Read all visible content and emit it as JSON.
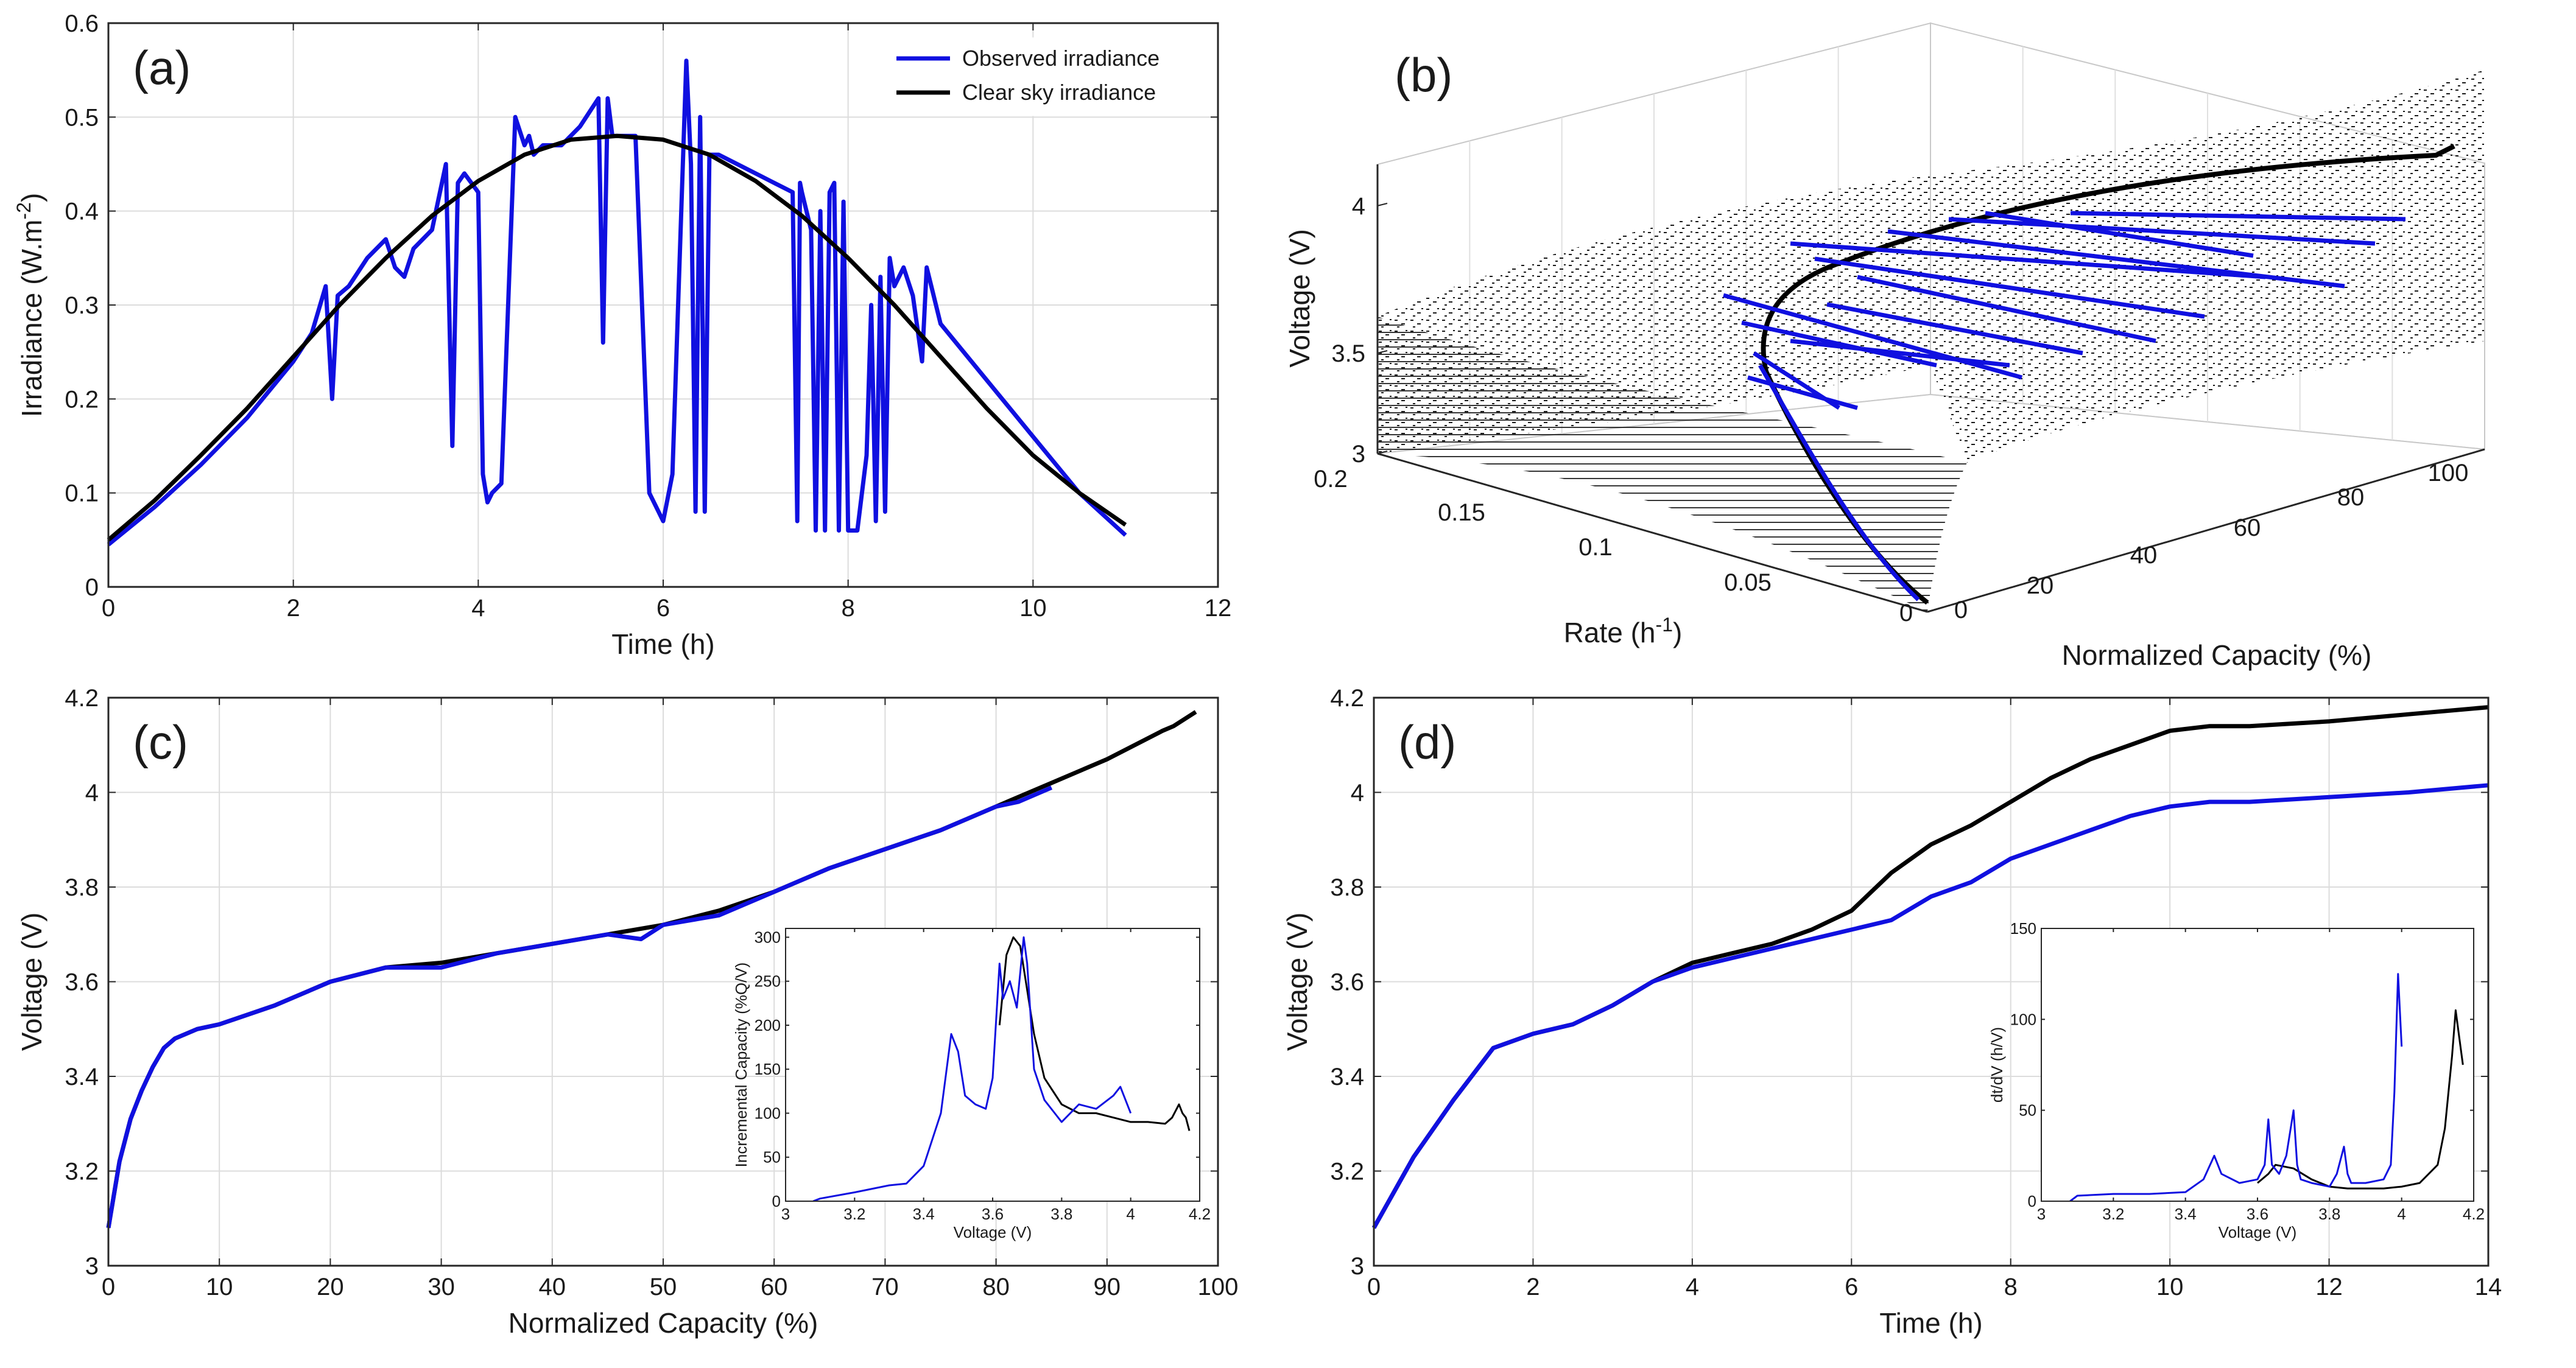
{
  "colors": {
    "observed": "#1010e0",
    "clear_sky": "#000000",
    "grid": "#dcdcdc",
    "axis": "#262626"
  },
  "chart_data": [
    {
      "id": "a",
      "type": "line",
      "panel_label": "(a)",
      "xlabel": "Time (h)",
      "ylabel_main": "Irradiance (W.m",
      "ylabel_sup": "-2",
      "ylabel_end": ")",
      "xlim": [
        0,
        12
      ],
      "ylim": [
        0,
        0.6
      ],
      "xticks": [
        0,
        2,
        4,
        6,
        8,
        10,
        12
      ],
      "yticks": [
        0,
        0.1,
        0.2,
        0.3,
        0.4,
        0.5,
        0.6
      ],
      "grid": true,
      "legend": "top-right",
      "series": [
        {
          "name": "Observed irradiance",
          "color": "#1010e0",
          "x": [
            0,
            0.5,
            1,
            1.5,
            2,
            2.2,
            2.35,
            2.42,
            2.48,
            2.6,
            2.8,
            3,
            3.1,
            3.2,
            3.3,
            3.5,
            3.65,
            3.72,
            3.78,
            3.85,
            4,
            4.05,
            4.1,
            4.15,
            4.25,
            4.4,
            4.5,
            4.55,
            4.6,
            4.7,
            4.9,
            5.1,
            5.3,
            5.35,
            5.4,
            5.45,
            5.55,
            5.7,
            5.85,
            5.95,
            6,
            6.1,
            6.25,
            6.3,
            6.35,
            6.4,
            6.45,
            6.5,
            6.6,
            6.8,
            7,
            7.2,
            7.4,
            7.45,
            7.48,
            7.5,
            7.55,
            7.6,
            7.65,
            7.7,
            7.75,
            7.8,
            7.85,
            7.9,
            7.95,
            8,
            8.1,
            8.2,
            8.25,
            8.3,
            8.35,
            8.4,
            8.45,
            8.5,
            8.6,
            8.7,
            8.8,
            8.85,
            8.9,
            9,
            9.5,
            10,
            10.5,
            11
          ],
          "y": [
            0.045,
            0.085,
            0.13,
            0.18,
            0.24,
            0.27,
            0.32,
            0.2,
            0.31,
            0.32,
            0.35,
            0.37,
            0.34,
            0.33,
            0.36,
            0.38,
            0.45,
            0.15,
            0.43,
            0.44,
            0.42,
            0.12,
            0.09,
            0.1,
            0.11,
            0.5,
            0.47,
            0.48,
            0.46,
            0.47,
            0.47,
            0.49,
            0.52,
            0.26,
            0.52,
            0.48,
            0.48,
            0.48,
            0.1,
            0.08,
            0.07,
            0.12,
            0.56,
            0.45,
            0.08,
            0.5,
            0.08,
            0.46,
            0.46,
            0.45,
            0.44,
            0.43,
            0.42,
            0.07,
            0.43,
            0.42,
            0.4,
            0.38,
            0.06,
            0.4,
            0.06,
            0.42,
            0.43,
            0.06,
            0.41,
            0.06,
            0.06,
            0.14,
            0.3,
            0.07,
            0.33,
            0.08,
            0.35,
            0.32,
            0.34,
            0.31,
            0.24,
            0.34,
            0.32,
            0.28,
            0.22,
            0.16,
            0.1,
            0.055
          ]
        },
        {
          "name": "Clear sky irradiance",
          "color": "#000000",
          "x": [
            0,
            0.5,
            1,
            1.5,
            2,
            2.5,
            3,
            3.5,
            4,
            4.5,
            5,
            5.5,
            6,
            6.5,
            7,
            7.5,
            8,
            8.5,
            9,
            9.5,
            10,
            10.5,
            11
          ],
          "y": [
            0.05,
            0.092,
            0.14,
            0.19,
            0.245,
            0.3,
            0.35,
            0.395,
            0.432,
            0.46,
            0.476,
            0.48,
            0.476,
            0.46,
            0.432,
            0.395,
            0.35,
            0.3,
            0.245,
            0.19,
            0.14,
            0.1,
            0.066
          ]
        }
      ]
    },
    {
      "id": "b",
      "type": "line",
      "panel_label": "(b)",
      "xlabel": "Normalized Capacity (%)",
      "rate_label_main": "Rate (h",
      "rate_label_sup": "-1",
      "rate_label_end": ")",
      "zlabel": "Voltage (V)",
      "capacity_ticks": [
        "0",
        "20",
        "40",
        "60",
        "80",
        "100"
      ],
      "rate_ticks": [
        "0.2",
        "0.15",
        "0.1",
        "0.05",
        "0"
      ],
      "voltage_ticks": [
        "3",
        "3.5",
        "4"
      ],
      "grid": true
    },
    {
      "id": "c",
      "type": "line",
      "panel_label": "(c)",
      "xlabel": "Normalized Capacity (%)",
      "ylabel": "Voltage (V)",
      "xlim": [
        0,
        100
      ],
      "ylim": [
        3,
        4.2
      ],
      "xticks": [
        0,
        10,
        20,
        30,
        40,
        50,
        60,
        70,
        80,
        90,
        100
      ],
      "yticks": [
        3,
        3.2,
        3.4,
        3.6,
        3.8,
        4,
        4.2
      ],
      "grid": true,
      "series": [
        {
          "color": "#000000",
          "x": [
            0,
            1,
            2,
            3,
            4,
            5,
            6,
            8,
            10,
            15,
            20,
            25,
            30,
            35,
            40,
            45,
            50,
            55,
            60,
            62,
            65,
            70,
            75,
            80,
            85,
            90,
            95,
            96,
            98
          ],
          "y": [
            3.08,
            3.22,
            3.31,
            3.37,
            3.42,
            3.46,
            3.48,
            3.5,
            3.51,
            3.55,
            3.6,
            3.63,
            3.64,
            3.66,
            3.68,
            3.7,
            3.72,
            3.75,
            3.79,
            3.81,
            3.84,
            3.88,
            3.92,
            3.97,
            4.02,
            4.07,
            4.13,
            4.14,
            4.17
          ]
        },
        {
          "color": "#1010e0",
          "x": [
            0,
            1,
            2,
            3,
            4,
            5,
            6,
            8,
            10,
            15,
            20,
            25,
            30,
            35,
            40,
            45,
            48,
            50,
            55,
            60,
            62,
            65,
            70,
            75,
            80,
            82,
            85
          ],
          "y": [
            3.08,
            3.22,
            3.31,
            3.37,
            3.42,
            3.46,
            3.48,
            3.5,
            3.51,
            3.55,
            3.6,
            3.63,
            3.63,
            3.66,
            3.68,
            3.7,
            3.69,
            3.72,
            3.74,
            3.79,
            3.81,
            3.84,
            3.88,
            3.92,
            3.97,
            3.98,
            4.01
          ]
        }
      ],
      "inset": {
        "xlabel": "Voltage (V)",
        "ylabel": "Incremental Capacity (%Q/V)",
        "xlim": [
          3,
          4.2
        ],
        "ylim": [
          0,
          310
        ],
        "xticks": [
          3,
          3.2,
          3.4,
          3.6,
          3.8,
          4,
          4.2
        ],
        "yticks": [
          0,
          50,
          100,
          150,
          200,
          250,
          300
        ],
        "series": [
          {
            "color": "#000000",
            "x": [
              3.62,
              3.64,
              3.66,
              3.68,
              3.7,
              3.72,
              3.75,
              3.8,
              3.85,
              3.9,
              3.95,
              4,
              4.05,
              4.1,
              4.12,
              4.14,
              4.15,
              4.16,
              4.17
            ],
            "y": [
              200,
              280,
              300,
              290,
              240,
              190,
              140,
              110,
              100,
              100,
              95,
              90,
              90,
              88,
              95,
              110,
              100,
              95,
              80
            ]
          },
          {
            "color": "#1010e0",
            "x": [
              3.08,
              3.1,
              3.2,
              3.3,
              3.35,
              3.4,
              3.45,
              3.48,
              3.5,
              3.52,
              3.55,
              3.58,
              3.6,
              3.62,
              3.63,
              3.65,
              3.67,
              3.69,
              3.7,
              3.72,
              3.75,
              3.78,
              3.8,
              3.85,
              3.9,
              3.95,
              3.97,
              4
            ],
            "y": [
              0,
              3,
              10,
              18,
              20,
              40,
              100,
              190,
              170,
              120,
              110,
              105,
              140,
              270,
              230,
              250,
              220,
              300,
              270,
              150,
              115,
              100,
              90,
              110,
              105,
              120,
              130,
              100
            ]
          }
        ]
      }
    },
    {
      "id": "d",
      "type": "line",
      "panel_label": "(d)",
      "xlabel": "Time (h)",
      "ylabel": "Voltage (V)",
      "xlim": [
        0,
        14
      ],
      "ylim": [
        3,
        4.2
      ],
      "xticks": [
        0,
        2,
        4,
        6,
        8,
        10,
        12,
        14
      ],
      "yticks": [
        3,
        3.2,
        3.4,
        3.6,
        3.8,
        4,
        4.2
      ],
      "grid": true,
      "series": [
        {
          "color": "#000000",
          "x": [
            0,
            0.5,
            1,
            1.5,
            2,
            2.5,
            3,
            3.5,
            4,
            4.5,
            5,
            5.5,
            6,
            6.5,
            7,
            7.5,
            8,
            8.5,
            9,
            9.5,
            10,
            10.5,
            11,
            12,
            13,
            14
          ],
          "y": [
            3.08,
            3.23,
            3.35,
            3.46,
            3.49,
            3.51,
            3.55,
            3.6,
            3.64,
            3.66,
            3.68,
            3.71,
            3.75,
            3.83,
            3.89,
            3.93,
            3.98,
            4.03,
            4.07,
            4.1,
            4.13,
            4.14,
            4.14,
            4.15,
            4.165,
            4.18
          ]
        },
        {
          "color": "#1010e0",
          "x": [
            0,
            0.5,
            1,
            1.5,
            2,
            2.5,
            3,
            3.5,
            4,
            4.5,
            5,
            5.5,
            6,
            6.5,
            7,
            7.5,
            8,
            8.5,
            9,
            9.5,
            10,
            10.5,
            11,
            12,
            13,
            14
          ],
          "y": [
            3.08,
            3.23,
            3.35,
            3.46,
            3.49,
            3.51,
            3.55,
            3.6,
            3.63,
            3.65,
            3.67,
            3.69,
            3.71,
            3.73,
            3.78,
            3.81,
            3.86,
            3.89,
            3.92,
            3.95,
            3.97,
            3.98,
            3.98,
            3.99,
            4.0,
            4.015
          ]
        }
      ],
      "inset": {
        "xlabel": "Voltage (V)",
        "ylabel": "dt/dV (h/V)",
        "xlim": [
          3,
          4.2
        ],
        "ylim": [
          0,
          150
        ],
        "xticks": [
          3,
          3.2,
          3.4,
          3.6,
          3.8,
          4,
          4.2
        ],
        "yticks": [
          0,
          50,
          100,
          150
        ],
        "series": [
          {
            "color": "#000000",
            "x": [
              3.6,
              3.63,
              3.65,
              3.7,
              3.75,
              3.8,
              3.85,
              3.9,
              3.95,
              4,
              4.05,
              4.1,
              4.12,
              4.14,
              4.15,
              4.16,
              4.17
            ],
            "y": [
              10,
              15,
              20,
              18,
              12,
              8,
              7,
              7,
              7,
              8,
              10,
              20,
              40,
              80,
              105,
              90,
              75
            ]
          },
          {
            "color": "#1010e0",
            "x": [
              3.08,
              3.1,
              3.2,
              3.3,
              3.4,
              3.45,
              3.48,
              3.5,
              3.55,
              3.6,
              3.62,
              3.63,
              3.64,
              3.66,
              3.68,
              3.7,
              3.71,
              3.72,
              3.75,
              3.8,
              3.82,
              3.84,
              3.85,
              3.86,
              3.9,
              3.95,
              3.97,
              3.98,
              3.99,
              4
            ],
            "y": [
              0,
              3,
              4,
              4,
              5,
              12,
              25,
              15,
              10,
              12,
              20,
              45,
              20,
              15,
              25,
              50,
              20,
              12,
              10,
              8,
              15,
              30,
              15,
              10,
              10,
              12,
              20,
              60,
              125,
              85
            ]
          }
        ]
      }
    }
  ]
}
